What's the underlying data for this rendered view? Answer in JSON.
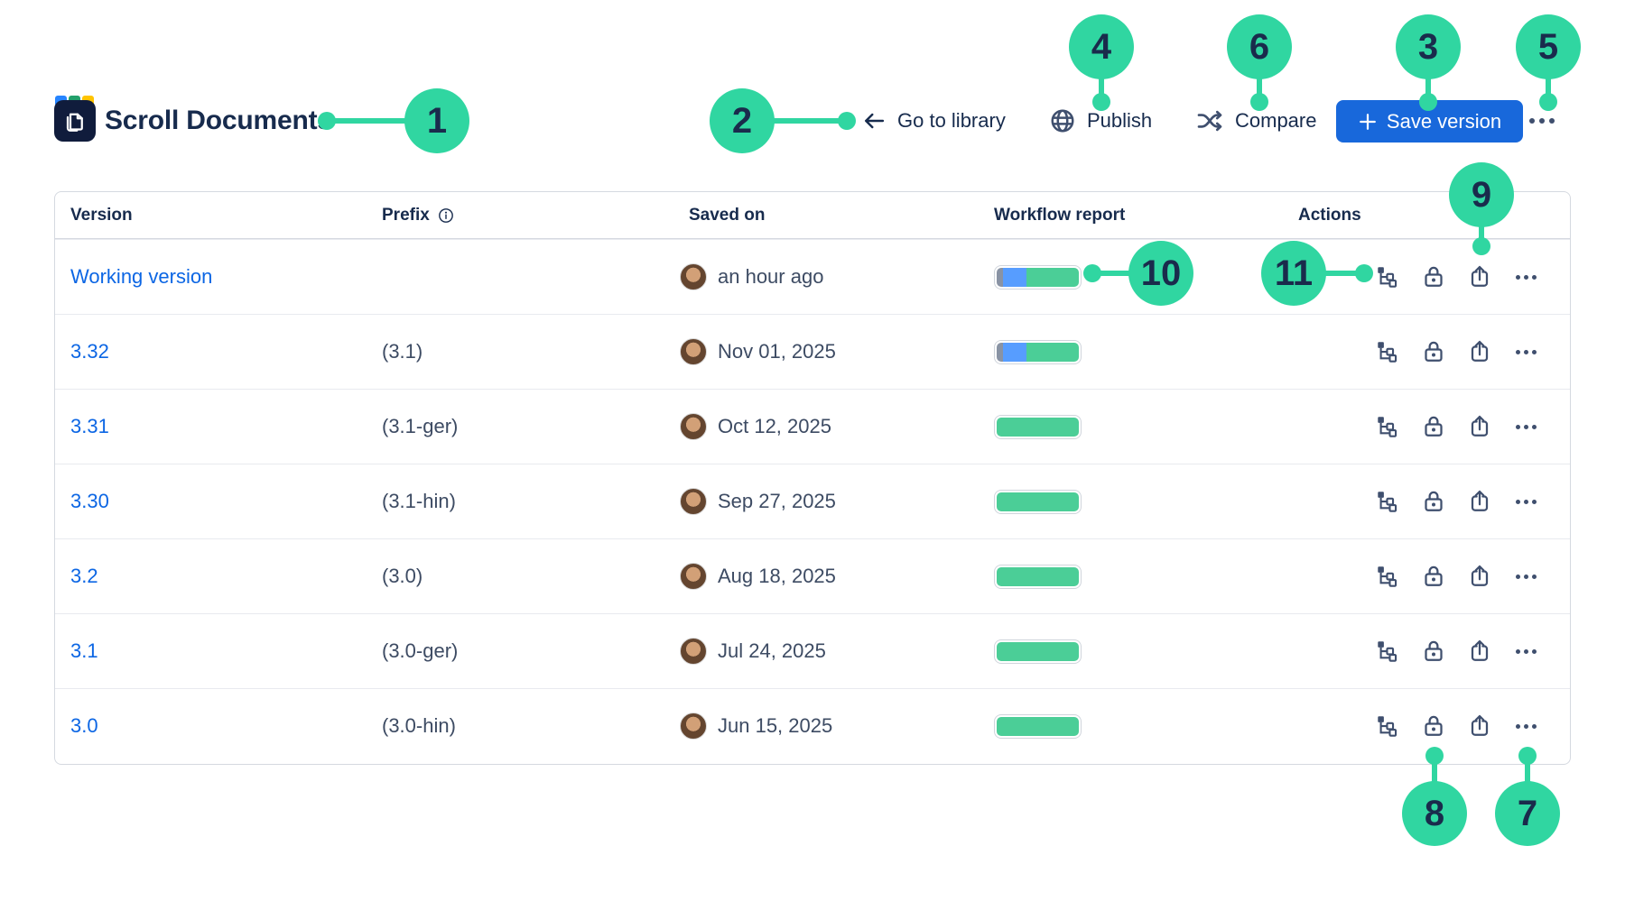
{
  "app": {
    "title": "Scroll Documents"
  },
  "nav": {
    "go_to_library": "Go to library",
    "publish": "Publish",
    "compare": "Compare",
    "save_version": "Save version"
  },
  "table": {
    "columns": {
      "version": "Version",
      "prefix": "Prefix",
      "saved_on": "Saved on",
      "workflow": "Workflow report",
      "actions": "Actions"
    },
    "rows": [
      {
        "version": "Working version",
        "prefix": "",
        "saved_on": "an hour ago",
        "workflow": [
          {
            "color": "#8993a4",
            "pct": 8
          },
          {
            "color": "#579dff",
            "pct": 28
          },
          {
            "color": "#4bce97",
            "pct": 64
          }
        ]
      },
      {
        "version": "3.32",
        "prefix": "(3.1)",
        "saved_on": "Nov 01, 2025",
        "workflow": [
          {
            "color": "#8993a4",
            "pct": 8
          },
          {
            "color": "#579dff",
            "pct": 28
          },
          {
            "color": "#4bce97",
            "pct": 64
          }
        ]
      },
      {
        "version": "3.31",
        "prefix": "(3.1-ger)",
        "saved_on": "Oct 12, 2025",
        "workflow": [
          {
            "color": "#4bce97",
            "pct": 100
          }
        ]
      },
      {
        "version": "3.30",
        "prefix": "(3.1-hin)",
        "saved_on": "Sep 27, 2025",
        "workflow": [
          {
            "color": "#4bce97",
            "pct": 100
          }
        ]
      },
      {
        "version": "3.2",
        "prefix": "(3.0)",
        "saved_on": "Aug 18, 2025",
        "workflow": [
          {
            "color": "#4bce97",
            "pct": 100
          }
        ]
      },
      {
        "version": "3.1",
        "prefix": "(3.0-ger)",
        "saved_on": "Jul 24, 2025",
        "workflow": [
          {
            "color": "#4bce97",
            "pct": 100
          }
        ]
      },
      {
        "version": "3.0",
        "prefix": "(3.0-hin)",
        "saved_on": "Jun 15, 2025",
        "workflow": [
          {
            "color": "#4bce97",
            "pct": 100
          }
        ]
      }
    ]
  },
  "callouts": {
    "c1": "1",
    "c2": "2",
    "c3": "3",
    "c4": "4",
    "c5": "5",
    "c6": "6",
    "c7": "7",
    "c8": "8",
    "c9": "9",
    "c10": "10",
    "c11": "11"
  },
  "icons": {
    "logo": "scroll-documents-logo",
    "back": "arrow-left-icon",
    "publish": "globe-icon",
    "compare": "shuffle-icon",
    "save": "plus-icon",
    "more": "ellipsis-icon",
    "prefix_info": "info-icon",
    "row_actions": [
      "tree-icon",
      "lock-icon",
      "export-icon",
      "ellipsis-icon"
    ]
  },
  "colors": {
    "annotation_green": "#30d6a1",
    "button_blue": "#1868db",
    "link_blue": "#0c66e4",
    "workflow_green": "#4bce97",
    "workflow_blue": "#579dff",
    "workflow_gray": "#8993a4"
  }
}
